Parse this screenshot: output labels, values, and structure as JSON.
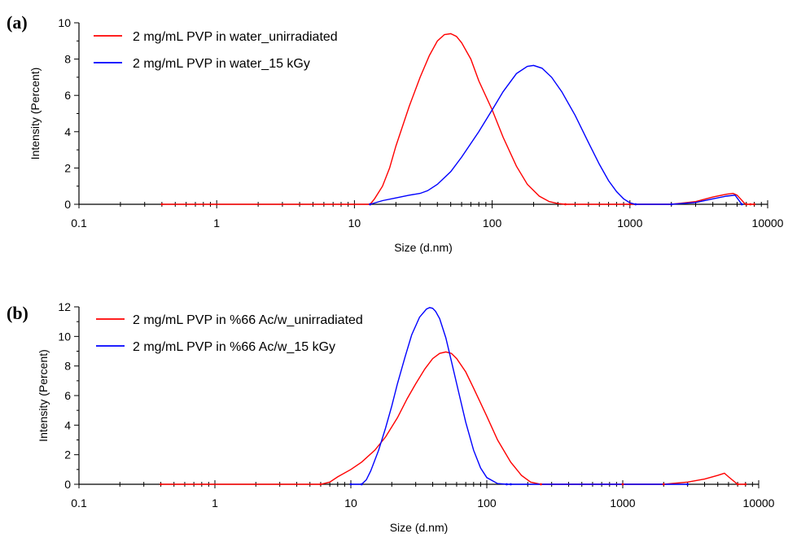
{
  "chart_data": [
    {
      "type": "line",
      "panel_label": "(a)",
      "xlabel": "Size (d.nm)",
      "ylabel": "Intensity (Percent)",
      "xscale": "log",
      "xlim": [
        0.1,
        10000
      ],
      "ylim": [
        0,
        10
      ],
      "x_ticks": [
        "0.1",
        "1",
        "10",
        "100",
        "1000",
        "10000"
      ],
      "y_ticks": [
        "0",
        "2",
        "4",
        "6",
        "8",
        "10"
      ],
      "grid": false,
      "legend_position": "top-left",
      "series": [
        {
          "name": "2 mg/mL PVP in water_unirradiated",
          "color": "#ff0000",
          "x": [
            0.4,
            13,
            14,
            16,
            18,
            20,
            25,
            30,
            35,
            40,
            45,
            50,
            55,
            60,
            70,
            80,
            100,
            120,
            150,
            180,
            220,
            260,
            300,
            340,
            1000,
            2000,
            3000,
            4000,
            5000,
            5600,
            6000,
            6800,
            7000,
            7500,
            8000
          ],
          "y": [
            0,
            0,
            0.3,
            1.0,
            2.0,
            3.2,
            5.4,
            7.0,
            8.2,
            9.0,
            9.35,
            9.4,
            9.25,
            8.9,
            8.0,
            6.8,
            5.2,
            3.7,
            2.1,
            1.1,
            0.45,
            0.15,
            0.04,
            0,
            0,
            0,
            0.15,
            0.4,
            0.55,
            0.6,
            0.5,
            0.05,
            0,
            0,
            0
          ]
        },
        {
          "name": "2 mg/mL PVP in water_15 kGy",
          "color": "#0000ff",
          "x": [
            13,
            16,
            20,
            25,
            30,
            34,
            40,
            50,
            60,
            80,
            100,
            120,
            150,
            180,
            200,
            230,
            270,
            320,
            400,
            500,
            600,
            700,
            800,
            900,
            1000,
            1100,
            2000,
            3000,
            4000,
            5000,
            5800,
            6500
          ],
          "y": [
            0,
            0.2,
            0.35,
            0.5,
            0.6,
            0.75,
            1.1,
            1.8,
            2.6,
            4.0,
            5.2,
            6.2,
            7.2,
            7.6,
            7.65,
            7.5,
            7.0,
            6.2,
            4.9,
            3.4,
            2.2,
            1.3,
            0.7,
            0.3,
            0.08,
            0,
            0,
            0.1,
            0.3,
            0.45,
            0.5,
            0
          ]
        }
      ]
    },
    {
      "type": "line",
      "panel_label": "(b)",
      "xlabel": "Size (d.nm)",
      "ylabel": "Intensity (Percent)",
      "xscale": "log",
      "xlim": [
        0.1,
        10000
      ],
      "ylim": [
        0,
        12
      ],
      "x_ticks": [
        "0.1",
        "1",
        "10",
        "100",
        "1000",
        "10000"
      ],
      "y_ticks": [
        "0",
        "2",
        "4",
        "6",
        "8",
        "10",
        "12"
      ],
      "grid": false,
      "legend_position": "top-left",
      "series": [
        {
          "name": "2 mg/mL PVP in %66 Ac/w_unirradiated",
          "color": "#ff0000",
          "x": [
            0.4,
            6,
            7,
            8,
            10,
            12,
            15,
            18,
            22,
            26,
            30,
            35,
            40,
            45,
            50,
            55,
            60,
            70,
            80,
            100,
            120,
            150,
            180,
            210,
            250,
            1000,
            2000,
            3000,
            4000,
            5000,
            5600,
            6000,
            7000,
            8000
          ],
          "y": [
            0,
            0,
            0.15,
            0.5,
            1.0,
            1.5,
            2.3,
            3.2,
            4.5,
            5.8,
            6.8,
            7.8,
            8.5,
            8.85,
            8.95,
            8.85,
            8.5,
            7.6,
            6.5,
            4.6,
            3.0,
            1.5,
            0.6,
            0.15,
            0,
            0,
            0,
            0.15,
            0.35,
            0.6,
            0.75,
            0.5,
            0,
            0
          ]
        },
        {
          "name": "2 mg/mL PVP in %66 Ac/w_15 kGy",
          "color": "#0000ff",
          "x": [
            10,
            12,
            13,
            14,
            16,
            18,
            20,
            22,
            25,
            28,
            32,
            36,
            38,
            40,
            42,
            45,
            50,
            55,
            60,
            70,
            80,
            90,
            100,
            120,
            140,
            150,
            3000
          ],
          "y": [
            0,
            0,
            0.3,
            0.9,
            2.3,
            3.8,
            5.3,
            6.8,
            8.6,
            10.1,
            11.3,
            11.85,
            11.95,
            11.9,
            11.7,
            11.2,
            9.9,
            8.3,
            6.8,
            4.2,
            2.3,
            1.1,
            0.45,
            0.05,
            0,
            0,
            0
          ]
        }
      ]
    }
  ]
}
